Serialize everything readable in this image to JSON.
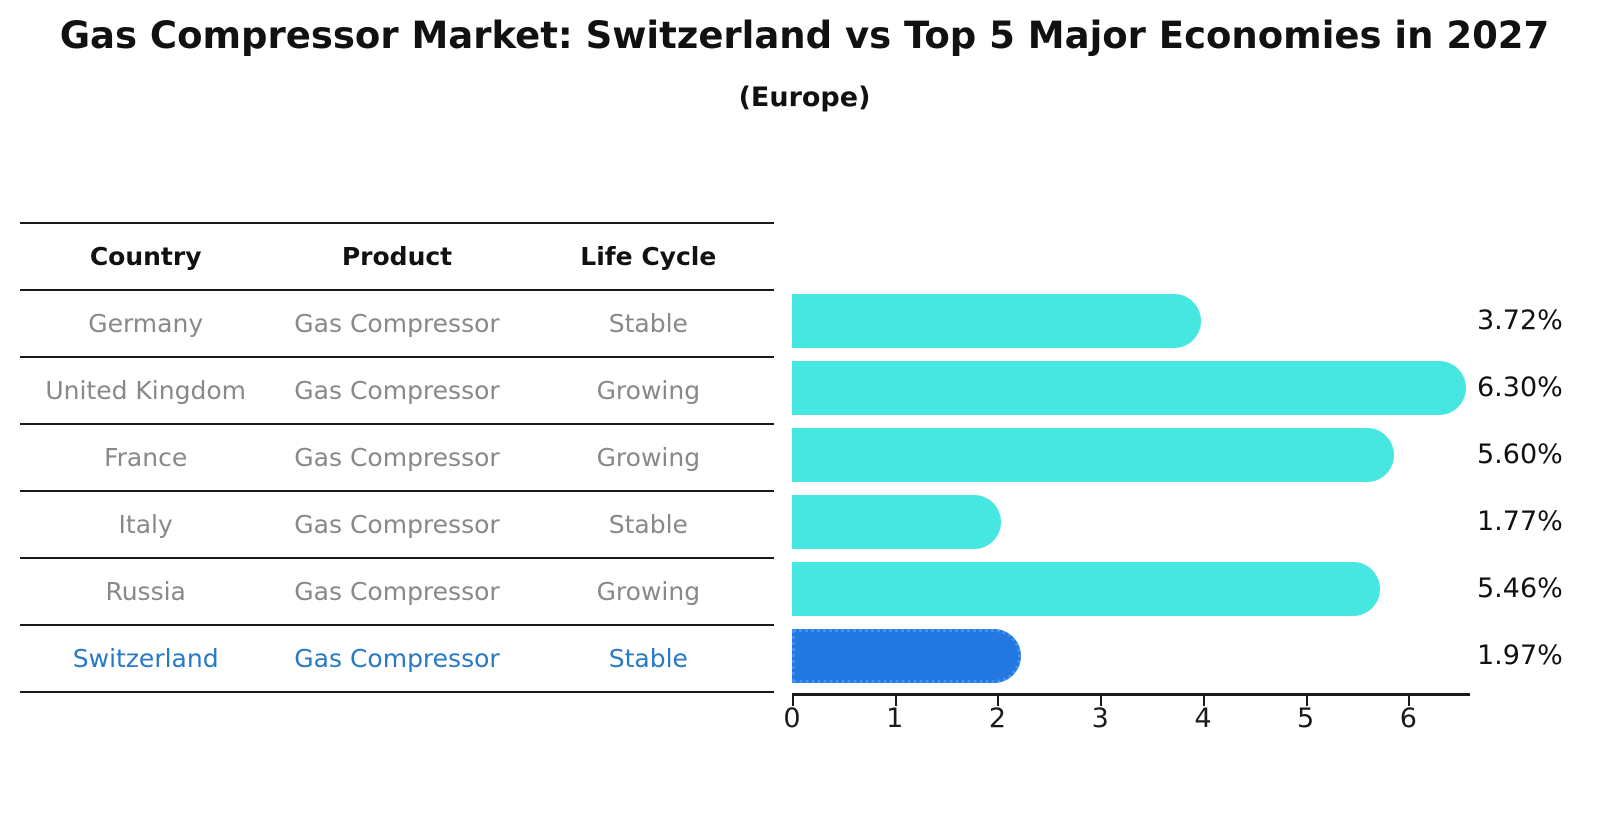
{
  "title": "Gas Compressor Market: Switzerland vs Top 5 Major Economies in 2027",
  "subtitle": "(Europe)",
  "table": {
    "headers": [
      "Country",
      "Product",
      "Life Cycle"
    ],
    "rows": [
      {
        "country": "Germany",
        "product": "Gas Compressor",
        "life_cycle": "Stable",
        "highlight": false
      },
      {
        "country": "United Kingdom",
        "product": "Gas Compressor",
        "life_cycle": "Growing",
        "highlight": false
      },
      {
        "country": "France",
        "product": "Gas Compressor",
        "life_cycle": "Growing",
        "highlight": false
      },
      {
        "country": "Italy",
        "product": "Gas Compressor",
        "life_cycle": "Stable",
        "highlight": false
      },
      {
        "country": "Russia",
        "product": "Gas Compressor",
        "life_cycle": "Growing",
        "highlight": false
      },
      {
        "country": "Switzerland",
        "product": "Gas Compressor",
        "life_cycle": "Stable",
        "highlight": true
      }
    ]
  },
  "chart_data": {
    "type": "bar",
    "orientation": "horizontal",
    "title": "Gas Compressor Market: Switzerland vs Top 5 Major Economies in 2027",
    "subtitle": "(Europe)",
    "categories": [
      "Germany",
      "United Kingdom",
      "France",
      "Italy",
      "Russia",
      "Switzerland"
    ],
    "values": [
      3.72,
      6.3,
      5.6,
      1.77,
      5.46,
      1.97
    ],
    "value_labels": [
      "3.72%",
      "6.30%",
      "5.60%",
      "1.77%",
      "5.46%",
      "1.97%"
    ],
    "highlight_index": 5,
    "x_ticks": [
      0,
      1,
      2,
      3,
      4,
      5,
      6
    ],
    "xlim": [
      0,
      6.6
    ],
    "grid": false,
    "legend": false,
    "bar_color": "#46e6e1",
    "highlight_bar_color": "#2277e0",
    "highlight_text_color": "#2979c9",
    "axis_color": "#1a1a1a",
    "row_text_color": "#898989"
  }
}
